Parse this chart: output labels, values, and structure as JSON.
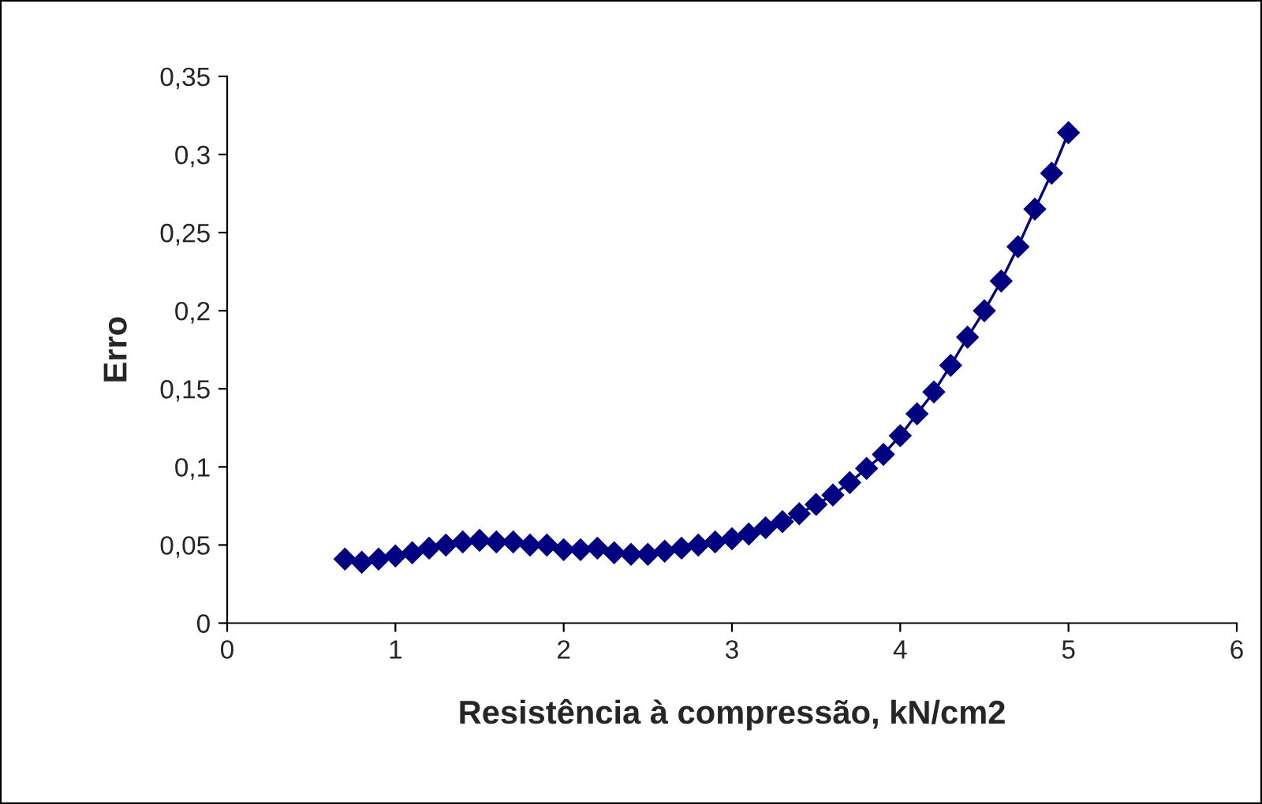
{
  "chart_data": {
    "type": "line",
    "xlabel": "Resistência à compressão, kN/cm2",
    "ylabel": "Erro",
    "x": [
      0.7,
      0.8,
      0.9,
      1.0,
      1.1,
      1.2,
      1.3,
      1.4,
      1.5,
      1.6,
      1.7,
      1.8,
      1.9,
      2.0,
      2.1,
      2.2,
      2.3,
      2.4,
      2.5,
      2.6,
      2.7,
      2.8,
      2.9,
      3.0,
      3.1,
      3.2,
      3.3,
      3.4,
      3.5,
      3.6,
      3.7,
      3.8,
      3.9,
      4.0,
      4.1,
      4.2,
      4.3,
      4.4,
      4.5,
      4.6,
      4.7,
      4.8,
      4.9,
      5.0
    ],
    "series": [
      {
        "color": "#000080",
        "values": [
          0.041,
          0.039,
          0.041,
          0.043,
          0.045,
          0.048,
          0.05,
          0.052,
          0.053,
          0.052,
          0.052,
          0.05,
          0.05,
          0.047,
          0.047,
          0.048,
          0.045,
          0.044,
          0.044,
          0.046,
          0.048,
          0.05,
          0.052,
          0.054,
          0.057,
          0.061,
          0.065,
          0.07,
          0.076,
          0.082,
          0.09,
          0.099,
          0.108,
          0.12,
          0.134,
          0.148,
          0.165,
          0.183,
          0.2,
          0.219,
          0.241,
          0.265,
          0.288,
          0.314
        ]
      }
    ],
    "xlim": [
      0,
      6
    ],
    "xticks": [
      0,
      1,
      2,
      3,
      4,
      5,
      6
    ],
    "ylim": [
      0,
      0.35
    ],
    "yticks": [
      0,
      {
        "value": 0.05,
        "label": "0,05"
      },
      {
        "value": 0.1,
        "label": "0,1"
      },
      {
        "value": 0.15,
        "label": "0,15"
      },
      {
        "value": 0.2,
        "label": "0,2"
      },
      {
        "value": 0.25,
        "label": "0,25"
      },
      {
        "value": 0.3,
        "label": "0,3"
      },
      {
        "value": 0.35,
        "label": "0,35"
      }
    ],
    "grid": false,
    "legend": false,
    "marker": "diamond",
    "line_style": "solid"
  }
}
